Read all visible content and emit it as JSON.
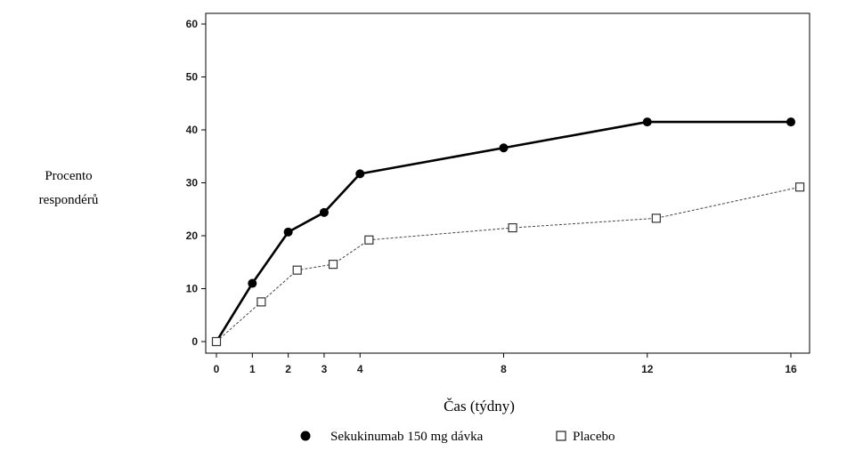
{
  "chart_data": {
    "type": "line",
    "ylabel_lines": [
      "Procento",
      "respondérů"
    ],
    "xlabel": "Čas (týdny)",
    "ylim": [
      0,
      60
    ],
    "yticks": [
      0,
      10,
      20,
      30,
      40,
      50,
      60
    ],
    "xticks": [
      0,
      1,
      2,
      3,
      4,
      8,
      12,
      16
    ],
    "grid": false,
    "legend_position": "bottom-center",
    "series": [
      {
        "name": "Sekukinumab 150 mg dávka",
        "marker": "filled-circle",
        "line_style": "solid",
        "color": "#000000",
        "x": [
          0,
          1,
          2,
          3,
          4,
          8,
          12,
          16
        ],
        "values": [
          0,
          11,
          20.7,
          24.4,
          31.7,
          36.6,
          41.5,
          41.5
        ]
      },
      {
        "name": "Placebo",
        "marker": "open-square",
        "line_style": "dashed",
        "color": "#444444",
        "x": [
          0,
          1.25,
          2.25,
          3.25,
          4.25,
          8.25,
          12.25,
          16.25
        ],
        "values": [
          0,
          7.5,
          13.5,
          14.6,
          19.2,
          21.5,
          23.3,
          29.2
        ]
      }
    ]
  }
}
